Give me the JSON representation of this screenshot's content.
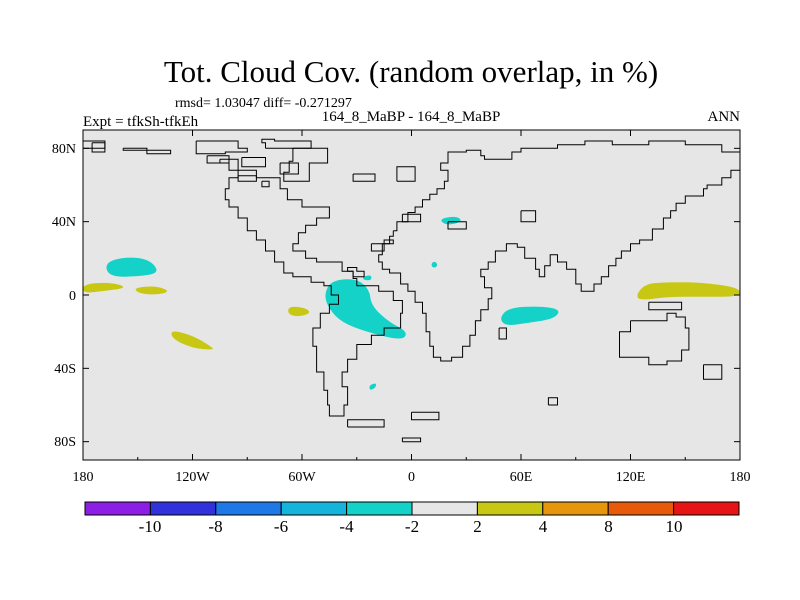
{
  "chart_data": {
    "type": "heatmap",
    "title": "Tot. Cloud Cov. (random overlap, in %)",
    "stats": "rmsd= 1.03047 diff= -0.271297",
    "left_label": "Expt = tfkSh-tfkEh",
    "center_label": "164_8_MaBP - 164_8_MaBP",
    "right_label": "ANN",
    "x_ticks": [
      "180",
      "120W",
      "60W",
      "0",
      "60E",
      "120E",
      "180"
    ],
    "x_values": [
      -180,
      -120,
      -60,
      0,
      60,
      120,
      180
    ],
    "y_ticks": [
      "80N",
      "40N",
      "0",
      "40S",
      "80S"
    ],
    "y_values": [
      80,
      40,
      0,
      -40,
      -80
    ],
    "xlim": [
      -180,
      180
    ],
    "ylim": [
      -90,
      90
    ],
    "colorbar": {
      "labels": [
        "-10",
        "-8",
        "-6",
        "-4",
        "-2",
        "2",
        "4",
        "8",
        "10"
      ],
      "colors": [
        "#8c1ee6",
        "#3232dc",
        "#1e78e6",
        "#14b4dc",
        "#14d2c8",
        "#e6e6e6",
        "#c8c814",
        "#e6960a",
        "#e65a0a",
        "#e61414"
      ]
    },
    "anomalies": [
      {
        "name": "north-pacific-negative",
        "color": "#14d2c8",
        "points": [
          [
            -168,
            18
          ],
          [
            -155,
            21
          ],
          [
            -143,
            19
          ],
          [
            -138,
            12
          ],
          [
            -150,
            10
          ],
          [
            -166,
            10
          ]
        ]
      },
      {
        "name": "central-pacific-positive-a",
        "color": "#c8c814",
        "points": [
          [
            -180,
            6
          ],
          [
            -165,
            7
          ],
          [
            -155,
            4
          ],
          [
            -170,
            2
          ],
          [
            -180,
            1
          ]
        ]
      },
      {
        "name": "central-pacific-positive-b",
        "color": "#c8c814",
        "points": [
          [
            -152,
            4
          ],
          [
            -140,
            5
          ],
          [
            -132,
            2
          ],
          [
            -140,
            0
          ],
          [
            -150,
            1
          ]
        ]
      },
      {
        "name": "south-pacific-positive",
        "color": "#c8c814",
        "points": [
          [
            -132,
            -19
          ],
          [
            -120,
            -22
          ],
          [
            -110,
            -28
          ],
          [
            -108,
            -30
          ],
          [
            -120,
            -29
          ],
          [
            -131,
            -24
          ]
        ]
      },
      {
        "name": "east-pacific-positive",
        "color": "#c8c814",
        "points": [
          [
            -67,
            -6
          ],
          [
            -58,
            -7
          ],
          [
            -55,
            -10
          ],
          [
            -63,
            -12
          ],
          [
            -68,
            -10
          ]
        ]
      },
      {
        "name": "amazon-atlantic-negative",
        "color": "#14d2c8",
        "points": [
          [
            -44,
            8
          ],
          [
            -30,
            9
          ],
          [
            -23,
            3
          ],
          [
            -22,
            -6
          ],
          [
            -12,
            -15
          ],
          [
            -2,
            -20
          ],
          [
            -5,
            -25
          ],
          [
            -25,
            -20
          ],
          [
            -38,
            -15
          ],
          [
            -45,
            -8
          ],
          [
            -48,
            0
          ]
        ]
      },
      {
        "name": "indian-ocean-negative",
        "color": "#14d2c8",
        "points": [
          [
            53,
            -7
          ],
          [
            70,
            -6
          ],
          [
            82,
            -8
          ],
          [
            78,
            -13
          ],
          [
            65,
            -15
          ],
          [
            52,
            -17
          ],
          [
            48,
            -13
          ]
        ]
      },
      {
        "name": "mediterranean-negative",
        "color": "#14d2c8",
        "points": [
          [
            17,
            42
          ],
          [
            25,
            43
          ],
          [
            28,
            40
          ],
          [
            20,
            38
          ],
          [
            16,
            40
          ]
        ]
      },
      {
        "name": "west-pacific-positive",
        "color": "#c8c814",
        "points": [
          [
            123,
            0
          ],
          [
            128,
            6
          ],
          [
            138,
            7
          ],
          [
            158,
            7
          ],
          [
            180,
            4
          ],
          [
            180,
            -1
          ],
          [
            160,
            -1
          ],
          [
            140,
            -1
          ],
          [
            125,
            -3
          ]
        ]
      },
      {
        "name": "south-atlantic-negative-small",
        "color": "#14d2c8",
        "points": [
          [
            -23,
            -49
          ],
          [
            -19,
            -48
          ],
          [
            -20,
            -51
          ],
          [
            -23,
            -52
          ]
        ]
      },
      {
        "name": "caribbean-negative-small",
        "color": "#14d2c8",
        "points": [
          [
            -27,
            10
          ],
          [
            -22,
            11
          ],
          [
            -22,
            8
          ],
          [
            -26,
            8
          ]
        ]
      },
      {
        "name": "central-asia-negative-small",
        "color": "#14d2c8",
        "points": [
          [
            11,
            18
          ],
          [
            14,
            18
          ],
          [
            14,
            15
          ],
          [
            11,
            15
          ]
        ]
      }
    ],
    "coastlines": [
      [
        [
          -180,
          80
        ],
        [
          -168,
          80
        ],
        [
          -168,
          84
        ],
        [
          -180,
          84
        ]
      ],
      [
        [
          -175,
          83
        ],
        [
          -168,
          83
        ],
        [
          -168,
          78
        ],
        [
          -175,
          78
        ]
      ],
      [
        [
          -158,
          80
        ],
        [
          -145,
          80
        ],
        [
          -145,
          77
        ],
        [
          -135,
          77
        ],
        [
          -132,
          79
        ],
        [
          -148,
          79
        ],
        [
          -158,
          79
        ]
      ],
      [
        [
          -118,
          84
        ],
        [
          -100,
          84
        ],
        [
          -95,
          80
        ],
        [
          -90,
          78
        ],
        [
          -102,
          77
        ],
        [
          -118,
          79
        ]
      ],
      [
        [
          -112,
          76
        ],
        [
          -100,
          76
        ],
        [
          -100,
          72
        ],
        [
          -112,
          72
        ]
      ],
      [
        [
          -80,
          80
        ],
        [
          -55,
          80
        ],
        [
          -55,
          84
        ],
        [
          -75,
          85
        ],
        [
          -82,
          83
        ]
      ],
      [
        [
          -93,
          75
        ],
        [
          -80,
          75
        ],
        [
          -80,
          70
        ],
        [
          -93,
          70
        ]
      ],
      [
        [
          -72,
          72
        ],
        [
          -62,
          72
        ],
        [
          -62,
          66
        ],
        [
          -72,
          66
        ]
      ],
      [
        [
          -65,
          80
        ],
        [
          -46,
          80
        ],
        [
          -46,
          72
        ],
        [
          -56,
          62
        ],
        [
          -67,
          62
        ],
        [
          -70,
          67
        ],
        [
          -67,
          73
        ]
      ],
      [
        [
          -95,
          65
        ],
        [
          -85,
          65
        ],
        [
          -85,
          62
        ],
        [
          -95,
          62
        ]
      ],
      [
        [
          -32,
          66
        ],
        [
          -20,
          66
        ],
        [
          -20,
          62
        ],
        [
          -32,
          62
        ]
      ],
      [
        [
          -82,
          62
        ],
        [
          -78,
          62
        ],
        [
          -78,
          59
        ],
        [
          -82,
          59
        ]
      ],
      [
        [
          -105,
          74
        ],
        [
          -95,
          74
        ],
        [
          -95,
          68
        ],
        [
          -85,
          68
        ],
        [
          -85,
          64
        ],
        [
          -75,
          64
        ],
        [
          -72,
          58
        ],
        [
          -68,
          52
        ],
        [
          -60,
          48
        ],
        [
          -50,
          48
        ],
        [
          -45,
          42
        ],
        [
          -52,
          38
        ],
        [
          -58,
          34
        ],
        [
          -62,
          28
        ],
        [
          -65,
          24
        ],
        [
          -58,
          20
        ],
        [
          -52,
          18
        ],
        [
          -38,
          13
        ],
        [
          -32,
          9
        ],
        [
          -30,
          5
        ],
        [
          -22,
          5
        ],
        [
          -18,
          2
        ],
        [
          -10,
          -3
        ],
        [
          -5,
          -10
        ],
        [
          -6,
          -18
        ],
        [
          -15,
          -22
        ],
        [
          -22,
          -27
        ],
        [
          -30,
          -35
        ],
        [
          -35,
          -42
        ],
        [
          -38,
          -50
        ],
        [
          -35,
          -60
        ],
        [
          -37,
          -66
        ],
        [
          -42,
          -66
        ],
        [
          -45,
          -60
        ],
        [
          -46,
          -52
        ],
        [
          -48,
          -42
        ],
        [
          -52,
          -28
        ],
        [
          -54,
          -18
        ],
        [
          -50,
          -10
        ],
        [
          -45,
          -5
        ],
        [
          -40,
          0
        ],
        [
          -44,
          5
        ],
        [
          -48,
          7
        ],
        [
          -55,
          10
        ],
        [
          -65,
          12
        ],
        [
          -70,
          18
        ],
        [
          -75,
          24
        ],
        [
          -80,
          30
        ],
        [
          -85,
          35
        ],
        [
          -90,
          42
        ],
        [
          -95,
          48
        ],
        [
          -100,
          52
        ],
        [
          -102,
          58
        ],
        [
          -100,
          64
        ],
        [
          -95,
          68
        ],
        [
          -100,
          72
        ],
        [
          -105,
          74
        ]
      ],
      [
        [
          -32,
          10
        ],
        [
          -28,
          10
        ],
        [
          -26,
          13
        ],
        [
          -30,
          15
        ],
        [
          -34,
          15
        ],
        [
          -35,
          13
        ]
      ],
      [
        [
          -22,
          28
        ],
        [
          -15,
          30
        ],
        [
          -10,
          28
        ],
        [
          -15,
          24
        ],
        [
          -22,
          24
        ]
      ],
      [
        [
          -35,
          -72
        ],
        [
          -15,
          -72
        ],
        [
          -15,
          -68
        ],
        [
          -35,
          -68
        ]
      ],
      [
        [
          0,
          -64
        ],
        [
          15,
          -64
        ],
        [
          15,
          -68
        ],
        [
          0,
          -68
        ]
      ],
      [
        [
          -10,
          35
        ],
        [
          -8,
          40
        ],
        [
          -2,
          45
        ],
        [
          2,
          48
        ],
        [
          6,
          52
        ],
        [
          10,
          55
        ],
        [
          14,
          58
        ],
        [
          18,
          62
        ],
        [
          20,
          68
        ],
        [
          16,
          72
        ],
        [
          20,
          78
        ],
        [
          30,
          79
        ],
        [
          38,
          76
        ],
        [
          40,
          74
        ],
        [
          48,
          74
        ],
        [
          55,
          78
        ],
        [
          60,
          80
        ],
        [
          70,
          80
        ],
        [
          80,
          82
        ],
        [
          95,
          84
        ],
        [
          110,
          82
        ],
        [
          130,
          84
        ],
        [
          150,
          82
        ],
        [
          170,
          78
        ],
        [
          180,
          74
        ],
        [
          180,
          68
        ],
        [
          175,
          64
        ],
        [
          170,
          60
        ],
        [
          162,
          58
        ],
        [
          160,
          54
        ],
        [
          150,
          50
        ],
        [
          145,
          46
        ],
        [
          142,
          42
        ],
        [
          138,
          36
        ],
        [
          132,
          30
        ],
        [
          125,
          28
        ],
        [
          120,
          24
        ],
        [
          115,
          20
        ],
        [
          112,
          16
        ],
        [
          108,
          10
        ],
        [
          104,
          6
        ],
        [
          100,
          2
        ],
        [
          96,
          2
        ],
        [
          93,
          6
        ],
        [
          90,
          14
        ],
        [
          85,
          18
        ],
        [
          80,
          22
        ],
        [
          76,
          16
        ],
        [
          73,
          10
        ],
        [
          70,
          14
        ],
        [
          68,
          20
        ],
        [
          62,
          26
        ],
        [
          58,
          28
        ],
        [
          52,
          24
        ],
        [
          46,
          18
        ],
        [
          42,
          14
        ],
        [
          38,
          10
        ],
        [
          40,
          4
        ],
        [
          44,
          -2
        ],
        [
          42,
          -8
        ],
        [
          38,
          -14
        ],
        [
          35,
          -22
        ],
        [
          32,
          -28
        ],
        [
          28,
          -34
        ],
        [
          22,
          -36
        ],
        [
          16,
          -34
        ],
        [
          12,
          -28
        ],
        [
          10,
          -20
        ],
        [
          8,
          -10
        ],
        [
          6,
          -4
        ],
        [
          2,
          2
        ],
        [
          -2,
          6
        ],
        [
          -6,
          12
        ],
        [
          -12,
          14
        ],
        [
          -16,
          18
        ],
        [
          -18,
          22
        ],
        [
          -16,
          28
        ],
        [
          -12,
          32
        ],
        [
          -10,
          35
        ]
      ],
      [
        [
          -8,
          62
        ],
        [
          2,
          64
        ],
        [
          2,
          70
        ],
        [
          -8,
          70
        ]
      ],
      [
        [
          20,
          40
        ],
        [
          30,
          40
        ],
        [
          30,
          36
        ],
        [
          20,
          36
        ]
      ],
      [
        [
          48,
          -18
        ],
        [
          52,
          -18
        ],
        [
          52,
          -24
        ],
        [
          48,
          -24
        ]
      ],
      [
        [
          -5,
          44
        ],
        [
          5,
          44
        ],
        [
          5,
          40
        ],
        [
          -5,
          40
        ]
      ],
      [
        [
          60,
          46
        ],
        [
          68,
          46
        ],
        [
          68,
          40
        ],
        [
          60,
          40
        ]
      ],
      [
        [
          120,
          -14
        ],
        [
          135,
          -14
        ],
        [
          140,
          -10
        ],
        [
          145,
          -12
        ],
        [
          150,
          -18
        ],
        [
          152,
          -24
        ],
        [
          152,
          -30
        ],
        [
          148,
          -36
        ],
        [
          140,
          -38
        ],
        [
          130,
          -34
        ],
        [
          118,
          -34
        ],
        [
          114,
          -28
        ],
        [
          114,
          -20
        ]
      ],
      [
        [
          160,
          -38
        ],
        [
          170,
          -38
        ],
        [
          170,
          -46
        ],
        [
          160,
          -46
        ]
      ],
      [
        [
          130,
          -4
        ],
        [
          148,
          -4
        ],
        [
          148,
          -8
        ],
        [
          130,
          -8
        ]
      ],
      [
        [
          -5,
          -80
        ],
        [
          5,
          -80
        ],
        [
          5,
          -78
        ],
        [
          -5,
          -78
        ]
      ],
      [
        [
          75,
          -60
        ],
        [
          80,
          -60
        ],
        [
          80,
          -56
        ],
        [
          75,
          -56
        ]
      ]
    ]
  }
}
